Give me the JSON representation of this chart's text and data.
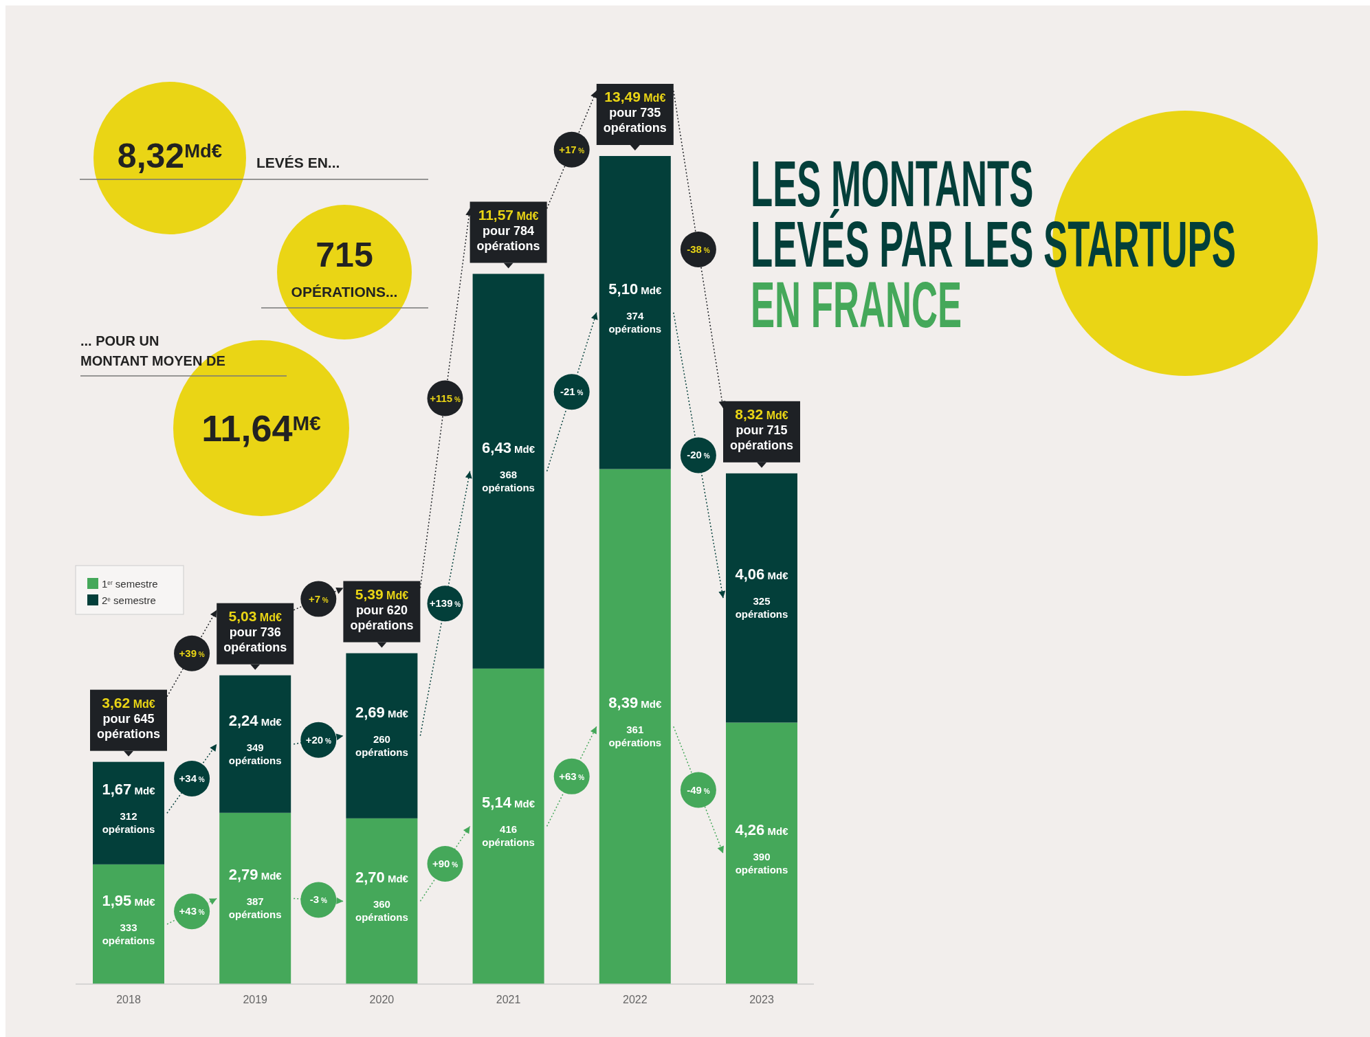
{
  "chart_data": {
    "type": "bar",
    "stacked": true,
    "title": "LES MONTANTS LEVÉS PAR LES STARTUPS",
    "subtitle": "EN FRANCE",
    "categories": [
      "2018",
      "2019",
      "2020",
      "2021",
      "2022",
      "2023"
    ],
    "series": [
      {
        "name": "1$^{er}$ semestre",
        "color": "#45a85a",
        "values": [
          1.95,
          2.79,
          2.7,
          5.14,
          8.39,
          4.26
        ],
        "value_labels": [
          "1,95 Md€",
          "2,79 Md€",
          "2,70 Md€",
          "5,14 Md€",
          "8,39 Md€",
          "4,26 Md€"
        ]
      },
      {
        "name": "2$^{e}$ semestre",
        "color": "#033f3a",
        "values": [
          1.67,
          2.24,
          2.69,
          6.43,
          5.1,
          4.06
        ],
        "value_labels": [
          "1,67 Md€",
          "2,24 Md€",
          "2,69 Md€",
          "6,43 Md€",
          "5,10 Md€",
          "4,06 Md€"
        ]
      }
    ],
    "totals": [
      "3,62 Md€\npour 645\nopérations",
      "5,03 Md€\npour 736\nopérations",
      "5,39 Md€\npour 620\nopérations",
      "11,57 Md€\npour 784\nopérations",
      "13,49 Md€\npour 735\nopérations",
      "8,32 Md€\npour 715\nopérations"
    ],
    "legend": "bottom left",
    "annotations": [
      "8,32$^{Md€}$",
      "LEVÉS EN...",
      "715",
      "OPÉRATIONS...",
      "... POUR UN MONTANT MOYEN DE",
      "11,64$^{M€}$",
      "+39 %",
      "+34 %",
      "+43 %",
      "+7 %",
      "+20 %",
      "-3 %",
      "+115 %",
      "+139 %",
      "+90 %",
      "+17 %",
      "-21 %",
      "+63 %",
      "-38 %",
      "-20 %",
      "-49 %",
      "333 opérations",
      "387 opérations",
      "360 opérations",
      "416 opérations",
      "361 opérations",
      "390 opérations",
      "312 opérations",
      "349 opérations",
      "260 opérations",
      "368 opérations",
      "374 opérations",
      "325 opérations"
    ]
  }
}
